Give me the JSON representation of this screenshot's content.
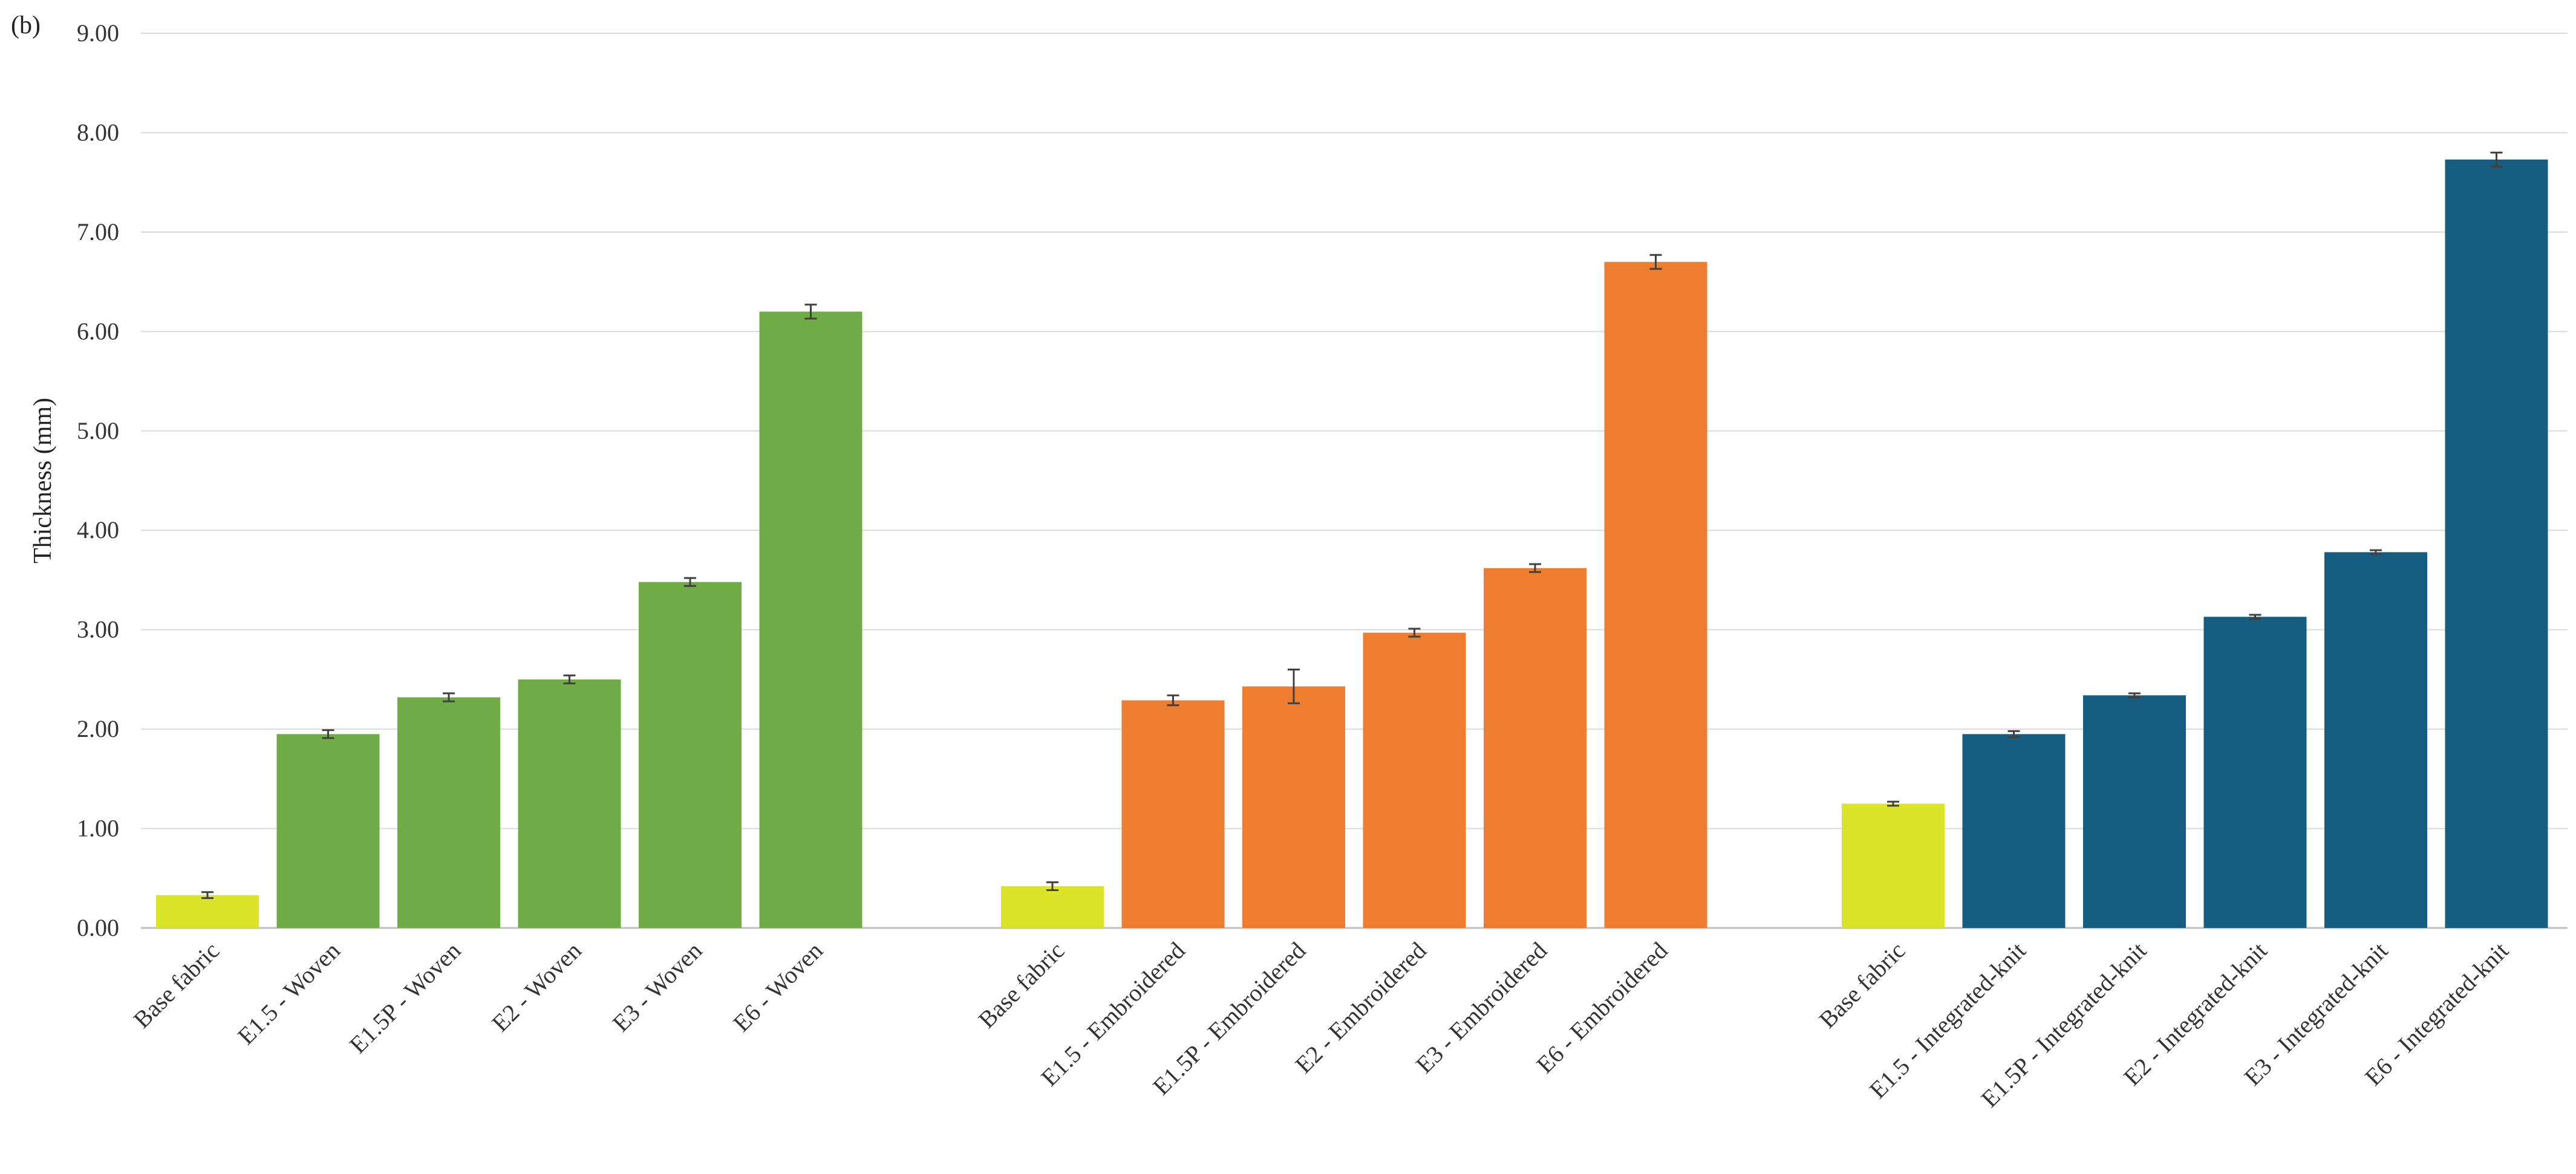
{
  "panel_label": "(b)",
  "chart_data": {
    "type": "bar",
    "title": "",
    "xlabel": "",
    "ylabel": "Thickness (mm)",
    "ylim": [
      0,
      9
    ],
    "yticks": [
      0,
      1,
      2,
      3,
      4,
      5,
      6,
      7,
      8,
      9
    ],
    "ytick_labels": [
      "0.00",
      "1.00",
      "2.00",
      "3.00",
      "4.00",
      "5.00",
      "6.00",
      "7.00",
      "8.00",
      "9.00"
    ],
    "grid": true,
    "legend": "none",
    "colors": {
      "base": "#dce42a",
      "woven": "#6fac46",
      "embroidered": "#ee7d30",
      "integrated": "#155e82"
    },
    "groups": [
      {
        "bars": [
          {
            "label": "Base fabric",
            "value": 0.33,
            "error": 0.03,
            "color": "base"
          },
          {
            "label": "E1.5 - Woven",
            "value": 1.95,
            "error": 0.04,
            "color": "woven"
          },
          {
            "label": "E1.5P - Woven",
            "value": 2.32,
            "error": 0.04,
            "color": "woven"
          },
          {
            "label": "E2 - Woven",
            "value": 2.5,
            "error": 0.04,
            "color": "woven"
          },
          {
            "label": "E3 - Woven",
            "value": 3.48,
            "error": 0.04,
            "color": "woven"
          },
          {
            "label": "E6 - Woven",
            "value": 6.2,
            "error": 0.07,
            "color": "woven"
          }
        ]
      },
      {
        "bars": [
          {
            "label": "Base fabric",
            "value": 0.42,
            "error": 0.04,
            "color": "base"
          },
          {
            "label": "E1.5 - Embroidered",
            "value": 2.29,
            "error": 0.05,
            "color": "embroidered"
          },
          {
            "label": "E1.5P - Embroidered",
            "value": 2.43,
            "error": 0.17,
            "color": "embroidered"
          },
          {
            "label": "E2 - Embroidered",
            "value": 2.97,
            "error": 0.04,
            "color": "embroidered"
          },
          {
            "label": "E3 - Embroidered",
            "value": 3.62,
            "error": 0.04,
            "color": "embroidered"
          },
          {
            "label": "E6 - Embroidered",
            "value": 6.7,
            "error": 0.07,
            "color": "embroidered"
          }
        ]
      },
      {
        "bars": [
          {
            "label": "Base fabric",
            "value": 1.25,
            "error": 0.02,
            "color": "base"
          },
          {
            "label": "E1.5 - Integrated-knit",
            "value": 1.95,
            "error": 0.03,
            "color": "integrated"
          },
          {
            "label": "E1.5P - Integrated-knit",
            "value": 2.34,
            "error": 0.02,
            "color": "integrated"
          },
          {
            "label": "E2 - Integrated-knit",
            "value": 3.13,
            "error": 0.02,
            "color": "integrated"
          },
          {
            "label": "E3 - Integrated-knit",
            "value": 3.78,
            "error": 0.02,
            "color": "integrated"
          },
          {
            "label": "E6 - Integrated-knit",
            "value": 7.73,
            "error": 0.07,
            "color": "integrated"
          }
        ]
      }
    ]
  }
}
